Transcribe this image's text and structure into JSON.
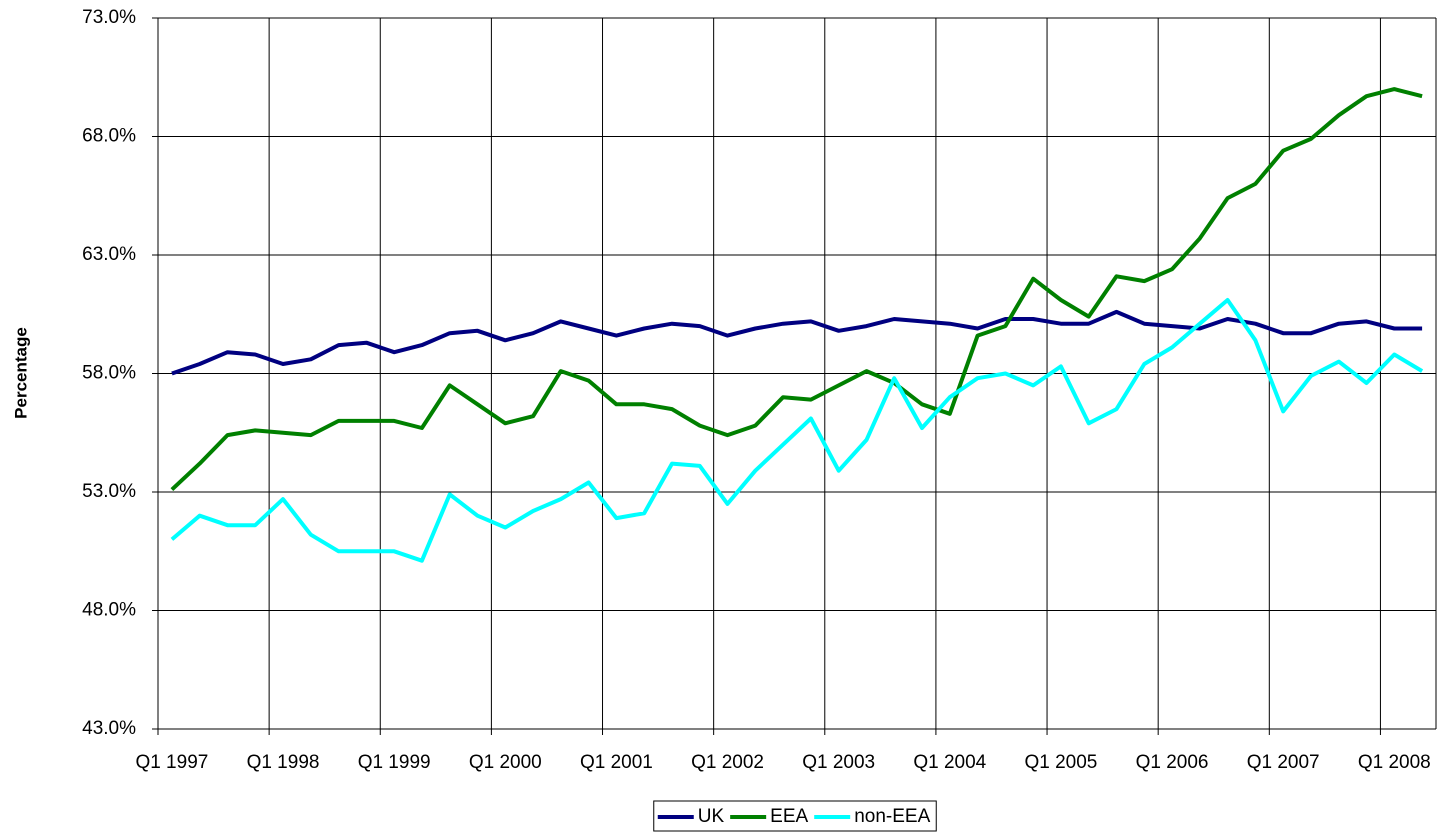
{
  "chart_data": {
    "type": "line",
    "y_label": "Percentage",
    "categories": [
      "Q1 1997",
      null,
      null,
      null,
      "Q1 1998",
      null,
      null,
      null,
      "Q1 1999",
      null,
      null,
      null,
      "Q1 2000",
      null,
      null,
      null,
      "Q1 2001",
      null,
      null,
      null,
      "Q1 2002",
      null,
      null,
      null,
      "Q1 2003",
      null,
      null,
      null,
      "Q1 2004",
      null,
      null,
      null,
      "Q1 2005",
      null,
      null,
      null,
      "Q1 2006",
      null,
      null,
      null,
      "Q1 2007",
      null,
      null,
      null,
      "Q1 2008",
      null
    ],
    "series": [
      {
        "name": "UK",
        "color": "#000080",
        "values": [
          58.0,
          58.4,
          58.9,
          58.8,
          58.4,
          58.6,
          59.2,
          59.3,
          58.9,
          59.2,
          59.7,
          59.8,
          59.4,
          59.7,
          60.2,
          59.9,
          59.6,
          59.9,
          60.1,
          60.0,
          59.6,
          59.9,
          60.1,
          60.2,
          59.8,
          60.0,
          60.3,
          60.2,
          60.1,
          59.9,
          60.3,
          60.3,
          60.1,
          60.1,
          60.6,
          60.1,
          60.0,
          59.9,
          60.3,
          60.1,
          59.7,
          59.7,
          60.1,
          60.2,
          59.9,
          59.9
        ]
      },
      {
        "name": "EEA",
        "color": "#008000",
        "values": [
          53.1,
          54.2,
          55.4,
          55.6,
          55.5,
          55.4,
          56.0,
          56.0,
          56.0,
          55.7,
          57.5,
          56.7,
          55.9,
          56.2,
          58.1,
          57.7,
          56.7,
          56.7,
          56.5,
          55.8,
          55.4,
          55.8,
          57.0,
          56.9,
          57.5,
          58.1,
          57.6,
          56.7,
          56.3,
          59.6,
          60.0,
          62.0,
          61.1,
          60.4,
          62.1,
          61.9,
          62.4,
          63.7,
          65.4,
          66.0,
          67.4,
          67.9,
          68.9,
          69.7,
          70.0,
          69.7
        ]
      },
      {
        "name": "non-EEA",
        "color": "#00ffff",
        "values": [
          51.0,
          52.0,
          51.6,
          51.6,
          52.7,
          51.2,
          50.5,
          50.5,
          50.5,
          50.1,
          52.9,
          52.0,
          51.5,
          52.2,
          52.7,
          53.4,
          51.9,
          52.1,
          54.2,
          54.1,
          52.5,
          53.9,
          55.0,
          56.1,
          53.9,
          55.2,
          57.8,
          55.7,
          57.0,
          57.8,
          58.0,
          57.5,
          58.3,
          55.9,
          56.5,
          58.4,
          59.1,
          60.1,
          61.1,
          59.4,
          56.4,
          57.9,
          58.5,
          57.6,
          58.8,
          58.1
        ]
      }
    ],
    "ylim": [
      43,
      73
    ],
    "yticks": [
      {
        "value": 43,
        "label": "43.0%"
      },
      {
        "value": 48,
        "label": "48.0%"
      },
      {
        "value": 53,
        "label": "53.0%"
      },
      {
        "value": 58,
        "label": "58.0%"
      },
      {
        "value": 63,
        "label": "63.0%"
      },
      {
        "value": 68,
        "label": "68.0%"
      },
      {
        "value": 73,
        "label": "73.0%"
      }
    ],
    "grid": true,
    "legend": "bottom"
  }
}
